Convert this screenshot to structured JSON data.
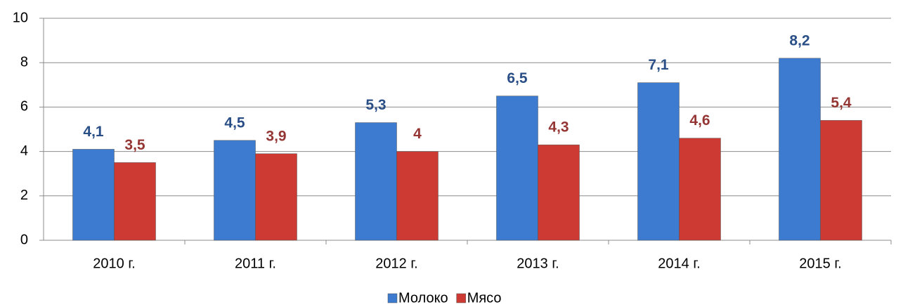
{
  "chart_data": {
    "type": "bar",
    "categories": [
      "2010 г.",
      "2011 г.",
      "2012 г.",
      "2013 г.",
      "2014 г.",
      "2015 г."
    ],
    "series": [
      {
        "name": "Молоко",
        "color": "#3c7bcf",
        "label_color": "#2a4f86",
        "values": [
          4.1,
          4.5,
          5.3,
          6.5,
          7.1,
          8.2
        ],
        "value_labels": [
          "4,1",
          "4,5",
          "5,3",
          "6,5",
          "7,1",
          "8,2"
        ]
      },
      {
        "name": "Мясо",
        "color": "#cc3a33",
        "label_color": "#943634",
        "values": [
          3.5,
          3.9,
          4,
          4.3,
          4.6,
          5.4
        ],
        "value_labels": [
          "3,5",
          "3,9",
          "4",
          "4,3",
          "4,6",
          "5,4"
        ]
      }
    ],
    "ylim": [
      0,
      10
    ],
    "yticks": [
      0,
      2,
      4,
      6,
      8,
      10
    ],
    "grid": true,
    "legend": "bottom"
  }
}
